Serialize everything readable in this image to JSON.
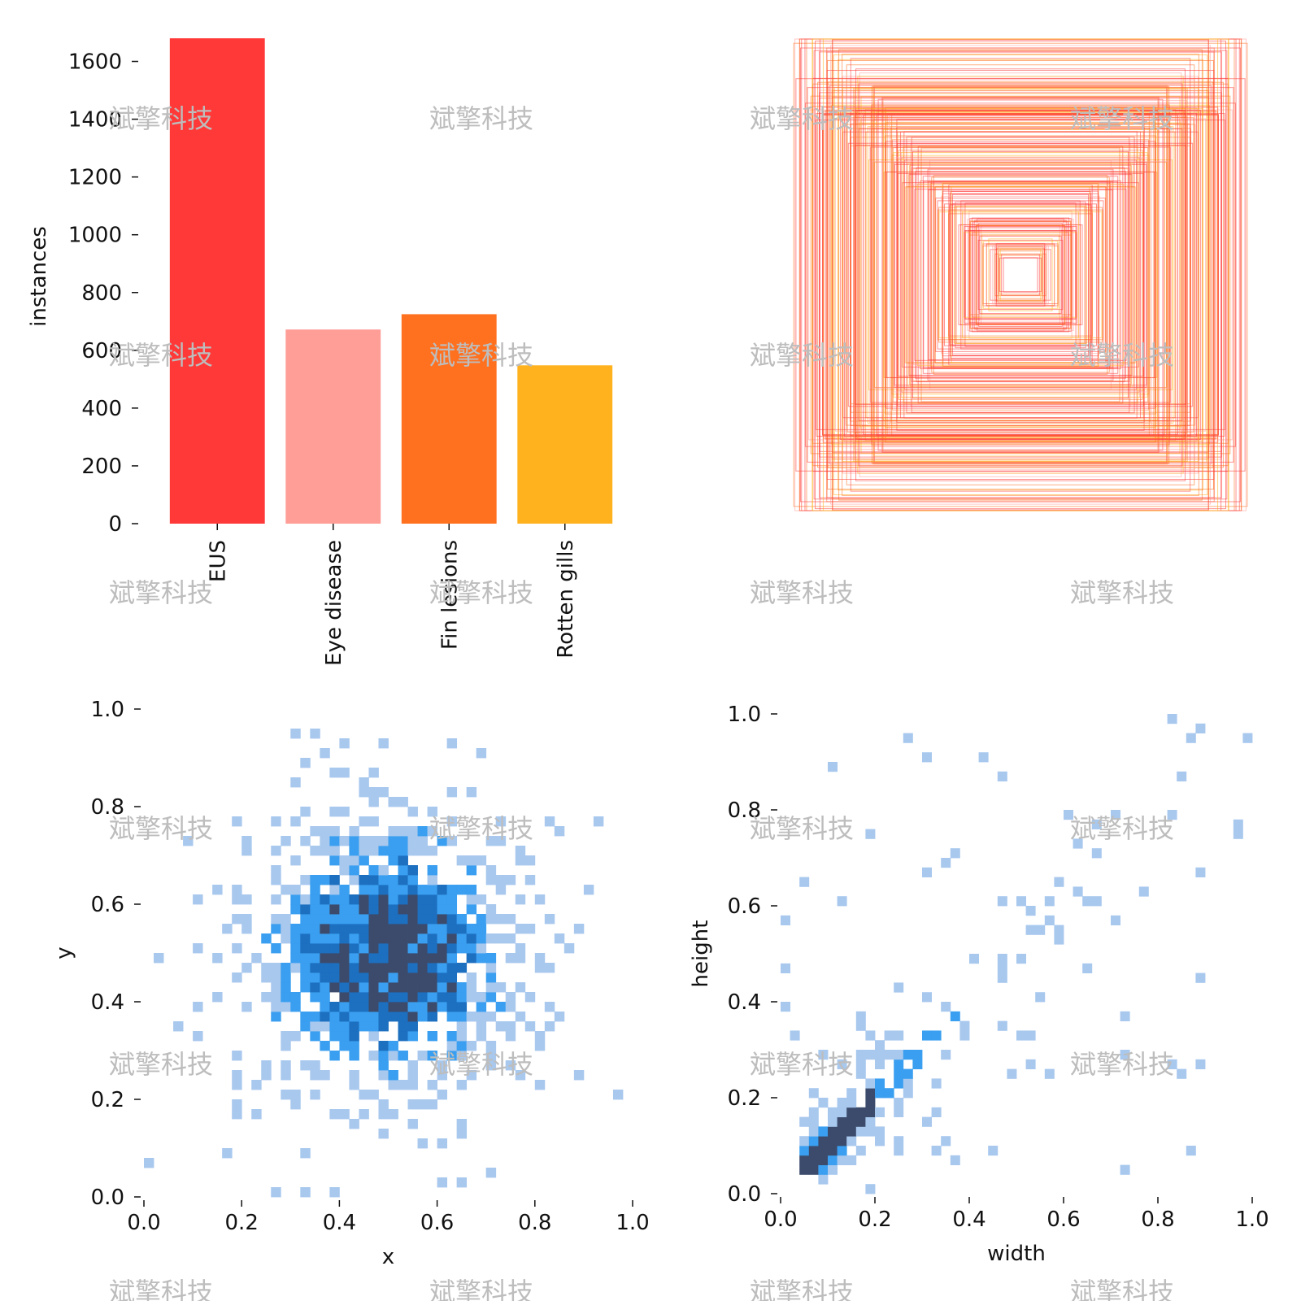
{
  "chart_data": [
    {
      "type": "bar",
      "categories": [
        "EUS",
        "Eye disease",
        "Fin lesions",
        "Rotten gills"
      ],
      "values": [
        1680,
        672,
        725,
        548
      ],
      "colors": [
        "#ff3838",
        "#ff9d97",
        "#ff701f",
        "#ffb21d"
      ],
      "ylabel": "instances",
      "ylim": [
        0,
        1700
      ],
      "yticks": [
        0,
        200,
        400,
        600,
        800,
        1000,
        1200,
        1400,
        1600
      ],
      "ytick_labels": [
        "0",
        "200",
        "400",
        "600",
        "800",
        "1000",
        "1200",
        "1400",
        "1600"
      ],
      "grid": false
    },
    {
      "type": "box-overlay",
      "description_of_marks": "bounding boxes centered, drawn as outlines colored by class",
      "colors": [
        "#ff3838",
        "#ff9d97",
        "#ff701f",
        "#ffb21d"
      ]
    },
    {
      "type": "heatmap",
      "xlabel": "x",
      "ylabel": "y",
      "xlim": [
        0,
        1
      ],
      "ylim": [
        0,
        1
      ],
      "xticks": [
        "0.0",
        "0.2",
        "0.4",
        "0.6",
        "0.8",
        "1.0"
      ],
      "yticks": [
        "0.0",
        "0.2",
        "0.4",
        "0.6",
        "0.8",
        "1.0"
      ],
      "distribution": {
        "center": [
          0.5,
          0.5
        ],
        "spread": 0.16
      },
      "colors": [
        "#a8c8ee",
        "#3a9ff0",
        "#1d6fc0",
        "#3c4b6c"
      ]
    },
    {
      "type": "heatmap",
      "xlabel": "width",
      "ylabel": "height",
      "xlim": [
        0,
        1
      ],
      "ylim": [
        0,
        1
      ],
      "xticks": [
        "0.0",
        "0.2",
        "0.4",
        "0.6",
        "0.8",
        "1.0"
      ],
      "yticks": [
        "0.0",
        "0.2",
        "0.4",
        "0.6",
        "0.8",
        "1.0"
      ],
      "distribution": {
        "concentrated_along": "height ≈ width",
        "mode": [
          0.1,
          0.1
        ]
      },
      "colors": [
        "#a8c8ee",
        "#3a9ff0",
        "#1d6fc0",
        "#3c4b6c"
      ]
    }
  ],
  "watermark": {
    "text": "斌擎科技"
  }
}
